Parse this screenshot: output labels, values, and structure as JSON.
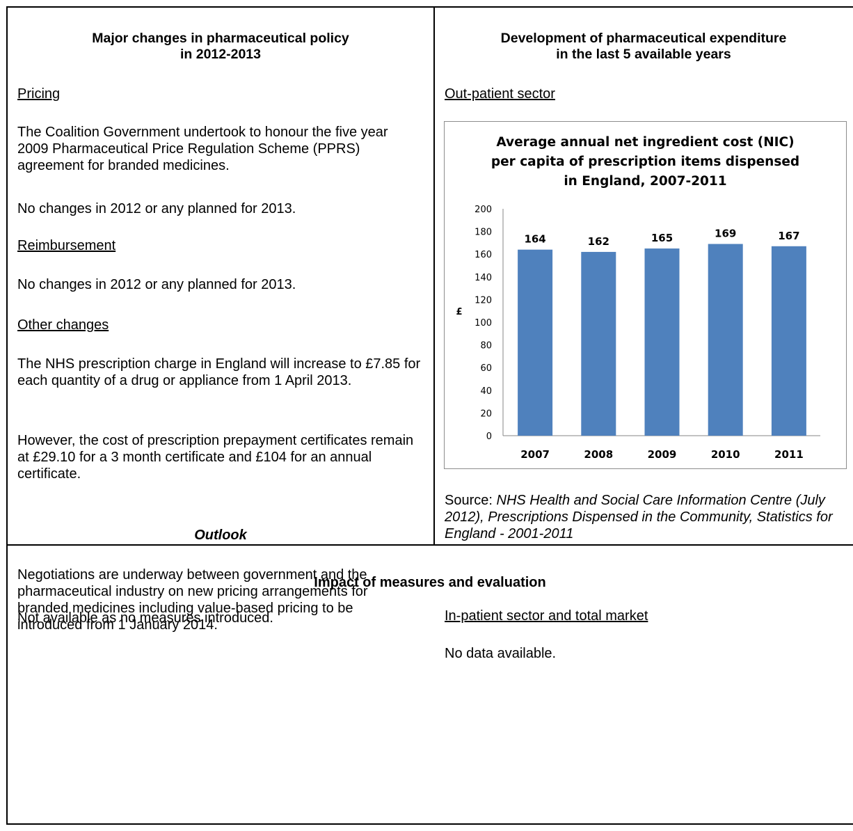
{
  "left": {
    "title_line1": "Major changes in pharmaceutical policy",
    "title_line2": "in 2012-2013",
    "pricing_heading": "Pricing",
    "pricing_p1": "The Coalition Government undertook to honour the five year 2009 Pharmaceutical Price Regulation Scheme (PPRS) agreement for branded medicines.",
    "pricing_p2": "No changes in 2012 or any planned for 2013.",
    "reimbursement_heading": "Reimbursement",
    "reimbursement_p1": "No changes in 2012 or any planned for 2013.",
    "other_heading": "Other changes",
    "other_p1": "The NHS prescription charge in England will increase to £7.85 for each quantity of a drug or appliance from 1 April 2013.",
    "other_p2": "However, the cost of prescription prepayment certificates remain at £29.10 for a 3 month certificate and £104 for an annual certificate.",
    "outlook_heading": "Outlook",
    "outlook_p1": "Negotiations are underway between government and the pharmaceutical industry on new pricing arrangements for branded medicines including value-based pricing to be introduced from 1 January 2014."
  },
  "right": {
    "title_line1": "Development of pharmaceutical expenditure",
    "title_line2": "in the last 5 available years",
    "outpatient_heading": "Out-patient sector",
    "source_label": "Source:",
    "source_text": "NHS Health and Social Care Information Centre (July 2012), Prescriptions Dispensed in the Community, Statistics for England - 2001-2011",
    "inpatient_heading": "In-patient sector and total market",
    "inpatient_text": "No data available."
  },
  "bottom": {
    "title": "Impact of measures and evaluation",
    "text": "Not available as no measures introduced."
  },
  "chart_data": {
    "type": "bar",
    "title_lines": [
      "Average annual net ingredient cost (NIC)",
      "per capita of prescription items dispensed",
      "in England, 2007-2011"
    ],
    "categories": [
      "2007",
      "2008",
      "2009",
      "2010",
      "2011"
    ],
    "values": [
      164,
      162,
      165,
      169,
      167
    ],
    "data_labels": [
      "164",
      "162",
      "165",
      "169",
      "167"
    ],
    "ylabel": "£",
    "ylim": [
      0,
      200
    ],
    "yticks": [
      0,
      20,
      40,
      60,
      80,
      100,
      120,
      140,
      160,
      180,
      200
    ],
    "ytick_labels": [
      "0",
      "20",
      "40",
      "60",
      "80",
      "100",
      "120",
      "140",
      "160",
      "180",
      "200"
    ],
    "bar_color": "#4f81bd",
    "grid": false,
    "legend": "none"
  }
}
